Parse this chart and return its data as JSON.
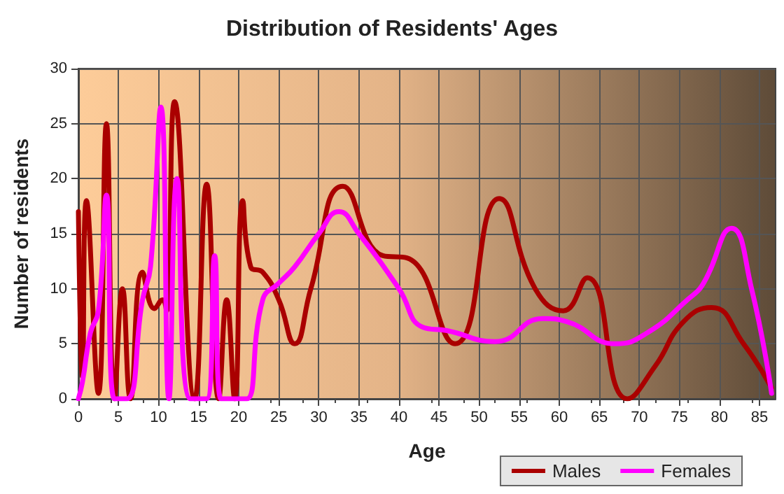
{
  "chart_data": {
    "type": "line",
    "title": "Distribution of Residents' Ages",
    "xlabel": "Age",
    "ylabel": "Number of residents",
    "xlim": [
      0,
      87
    ],
    "xticks": [
      0,
      5,
      10,
      15,
      20,
      25,
      30,
      35,
      40,
      45,
      50,
      55,
      60,
      65,
      70,
      75,
      80,
      85
    ],
    "ylim": [
      0,
      30
    ],
    "yticks": [
      0,
      5,
      10,
      15,
      20,
      25,
      30
    ],
    "grid": true,
    "legend": "bottom right",
    "marker": "none",
    "line_style": "solid",
    "series": [
      {
        "name": "Males",
        "color": "#aa0000",
        "x": [
          0,
          0.5,
          1,
          2.5,
          3.5,
          4.5,
          5.5,
          6.5,
          8,
          9.5,
          10.5,
          11,
          12,
          14.5,
          16,
          17.5,
          18.5,
          19.5,
          20.5,
          21.5,
          23,
          25,
          27,
          29,
          33,
          38,
          41,
          47,
          52.5,
          57,
          60.5,
          63.5,
          68.5,
          72,
          75.5,
          79,
          83,
          86.5
        ],
        "values": [
          17,
          2,
          18,
          0.5,
          25,
          0,
          10,
          0,
          11.5,
          8.2,
          9,
          8,
          27,
          0,
          19.5,
          0,
          9,
          0,
          18,
          12,
          11.5,
          9,
          5,
          10,
          19.3,
          13,
          12.8,
          5,
          18.2,
          10,
          8,
          11,
          0,
          3,
          7,
          8.3,
          5,
          1
        ]
      },
      {
        "name": "Females",
        "color": "#ff00ff",
        "x": [
          0,
          0.5,
          1.5,
          2.5,
          3.5,
          4.5,
          6,
          8,
          9,
          10.3,
          11.3,
          12.3,
          14,
          16,
          17,
          17.8,
          20,
          21,
          23,
          25,
          27,
          30,
          32.5,
          35,
          40,
          43,
          46,
          52,
          58,
          61,
          67,
          71,
          76,
          78,
          81.5,
          84,
          86.5
        ],
        "values": [
          0,
          1.5,
          6,
          8,
          18.5,
          0,
          0,
          9,
          12,
          26.5,
          0,
          20,
          0,
          0,
          13,
          0,
          0,
          0,
          9,
          10.5,
          12,
          15,
          17,
          15,
          10,
          6.5,
          6.2,
          5.2,
          7.3,
          7,
          5,
          6,
          9,
          10.5,
          15.5,
          10,
          0.5
        ]
      }
    ]
  }
}
